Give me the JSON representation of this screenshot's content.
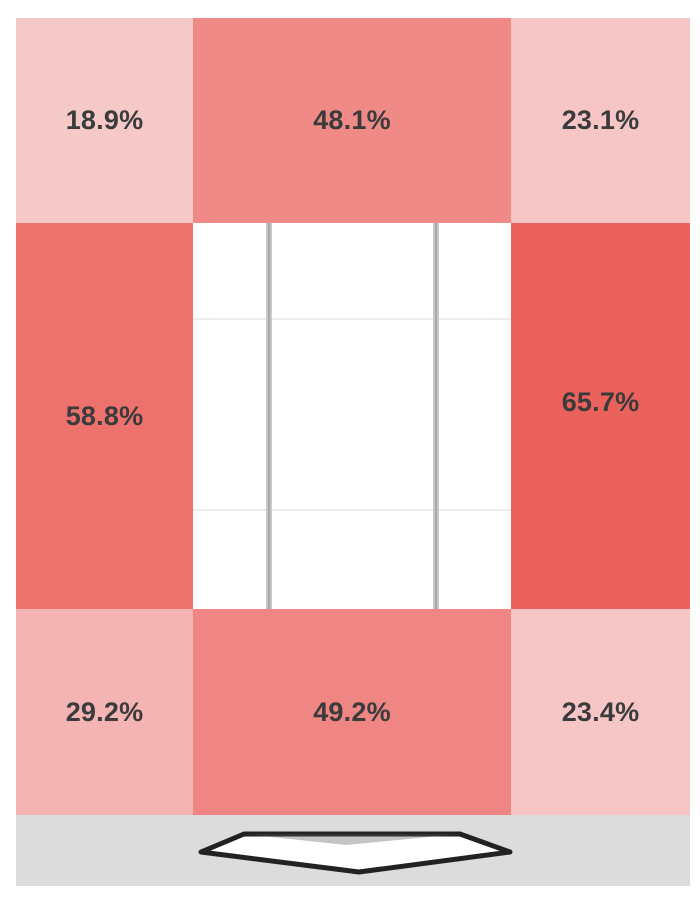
{
  "chart_data": {
    "type": "heatmap",
    "cells": [
      {
        "label": "18.9%",
        "value": 18.9,
        "color": "#f6c9c9"
      },
      {
        "label": "48.1%",
        "value": 48.1,
        "color": "#ef8a86"
      },
      {
        "label": "23.1%",
        "value": 23.1,
        "color": "#f6c6c6"
      },
      {
        "label": "58.8%",
        "value": 58.8,
        "color": "#ed726d"
      },
      {
        "label": "65.7%",
        "value": 65.7,
        "color": "#eb625c"
      },
      {
        "label": "29.2%",
        "value": 29.2,
        "color": "#f4b4b4"
      },
      {
        "label": "49.2%",
        "value": 49.2,
        "color": "#ef8683"
      },
      {
        "label": "23.4%",
        "value": 23.4,
        "color": "#f6c6c6"
      }
    ]
  },
  "colors": {
    "court_background": "#ffffff",
    "court_lines": "#c8c8c8",
    "base_strip": "#dcdcdc"
  },
  "icons": {
    "center_court": "court-lines-icon",
    "home_plate": "home-plate-icon"
  }
}
